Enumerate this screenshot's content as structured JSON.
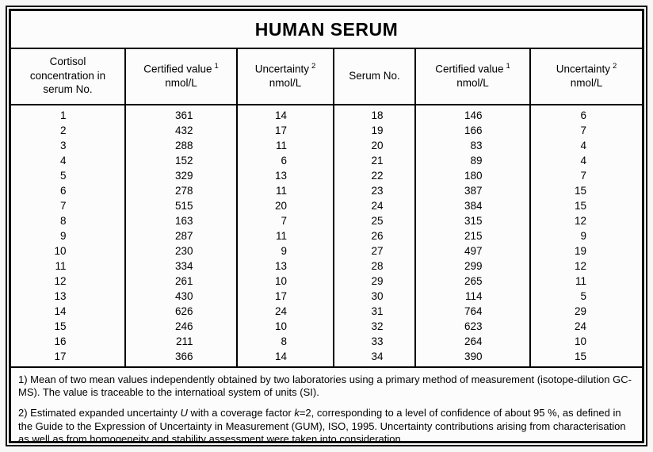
{
  "title": "HUMAN SERUM",
  "header": {
    "col1": {
      "label": "Cortisol\nconcentration in\nserum No."
    },
    "col2": {
      "label": "Certified value",
      "sup": "1",
      "unit": "nmol/L"
    },
    "col3": {
      "label": "Uncertainty",
      "sup": "2",
      "unit": "nmol/L"
    },
    "col4": {
      "label": "Serum No."
    },
    "col5": {
      "label": "Certified value",
      "sup": "1",
      "unit": "nmol/L"
    },
    "col6": {
      "label": "Uncertainty",
      "sup": "2",
      "unit": "nmol/L"
    }
  },
  "rows_left": [
    {
      "no": "1",
      "value": "361",
      "uncertainty": "14"
    },
    {
      "no": "2",
      "value": "432",
      "uncertainty": "17"
    },
    {
      "no": "3",
      "value": "288",
      "uncertainty": "11"
    },
    {
      "no": "4",
      "value": "152",
      "uncertainty": "6"
    },
    {
      "no": "5",
      "value": "329",
      "uncertainty": "13"
    },
    {
      "no": "6",
      "value": "278",
      "uncertainty": "11"
    },
    {
      "no": "7",
      "value": "515",
      "uncertainty": "20"
    },
    {
      "no": "8",
      "value": "163",
      "uncertainty": "7"
    },
    {
      "no": "9",
      "value": "287",
      "uncertainty": "11"
    },
    {
      "no": "10",
      "value": "230",
      "uncertainty": "9"
    },
    {
      "no": "11",
      "value": "334",
      "uncertainty": "13"
    },
    {
      "no": "12",
      "value": "261",
      "uncertainty": "10"
    },
    {
      "no": "13",
      "value": "430",
      "uncertainty": "17"
    },
    {
      "no": "14",
      "value": "626",
      "uncertainty": "24"
    },
    {
      "no": "15",
      "value": "246",
      "uncertainty": "10"
    },
    {
      "no": "16",
      "value": "211",
      "uncertainty": "8"
    },
    {
      "no": "17",
      "value": "366",
      "uncertainty": "14"
    }
  ],
  "rows_right": [
    {
      "no": "18",
      "value": "146",
      "uncertainty": "6"
    },
    {
      "no": "19",
      "value": "166",
      "uncertainty": "7"
    },
    {
      "no": "20",
      "value": "83",
      "uncertainty": "4"
    },
    {
      "no": "21",
      "value": "89",
      "uncertainty": "4"
    },
    {
      "no": "22",
      "value": "180",
      "uncertainty": "7"
    },
    {
      "no": "23",
      "value": "387",
      "uncertainty": "15"
    },
    {
      "no": "24",
      "value": "384",
      "uncertainty": "15"
    },
    {
      "no": "25",
      "value": "315",
      "uncertainty": "12"
    },
    {
      "no": "26",
      "value": "215",
      "uncertainty": "9"
    },
    {
      "no": "27",
      "value": "497",
      "uncertainty": "19"
    },
    {
      "no": "28",
      "value": "299",
      "uncertainty": "12"
    },
    {
      "no": "29",
      "value": "265",
      "uncertainty": "11"
    },
    {
      "no": "30",
      "value": "114",
      "uncertainty": "5"
    },
    {
      "no": "31",
      "value": "764",
      "uncertainty": "29"
    },
    {
      "no": "32",
      "value": "623",
      "uncertainty": "24"
    },
    {
      "no": "33",
      "value": "264",
      "uncertainty": "10"
    },
    {
      "no": "34",
      "value": "390",
      "uncertainty": "15"
    }
  ],
  "footnotes": {
    "note1_segments": [
      {
        "t": "1) Mean of two mean values independently obtained by two laboratories using a primary method of measurement (isotope-dilution GC-MS). The value is traceable to the internatioal system of units (SI)."
      }
    ],
    "note2_segments": [
      {
        "t": "2) Estimated expanded uncertainty "
      },
      {
        "t": "U",
        "i": true
      },
      {
        "t": " with a coverage factor "
      },
      {
        "t": "k",
        "i": true
      },
      {
        "t": "=2, corresponding to a level of confidence of about 95 %, as defined in the Guide to the Expression of Uncertainty in Measurement (GUM), ISO, 1995. Uncertainty contributions arising from characterisation as well as from homogeneity and stability assessment were taken into consideration."
      }
    ]
  },
  "colors": {
    "border": "#000000",
    "page_background": "#f7f7f7",
    "paper": "#fcfcfc",
    "text": "#000000"
  }
}
